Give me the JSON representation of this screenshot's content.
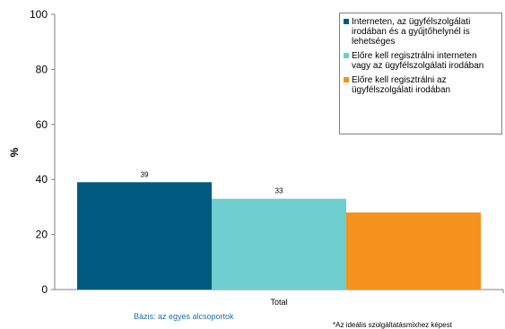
{
  "chart_data": {
    "type": "bar",
    "ylabel": "%",
    "ylim": [
      0,
      100
    ],
    "yticks": [
      0,
      20,
      40,
      60,
      80,
      100
    ],
    "categories": [
      "Total"
    ],
    "grid": false,
    "legend_position": "top-right",
    "series": [
      {
        "name": "Interneten, az ügyfélszolgálati irodában és a gyűjtőhelynél is lehetséges",
        "color": "#005a80",
        "values": [
          39
        ],
        "label": "39"
      },
      {
        "name": "Előre kell regisztrálni interneten vagy az ügyfélszolgálati irodában",
        "color": "#6fcfcf",
        "values": [
          33
        ],
        "label": "33"
      },
      {
        "name": "Előre kell regisztrálni az ügyfélszolgálati irodában",
        "color": "#f7921e",
        "values": [
          28
        ],
        "label": ""
      }
    ]
  },
  "notes": {
    "base": "Bázis: az egyes alcsoportok",
    "footnote": "*Az ideális szolgáltatásmixhez képest"
  }
}
